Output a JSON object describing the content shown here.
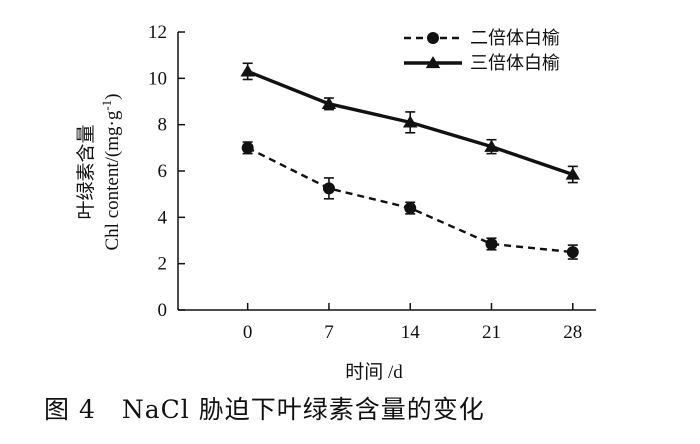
{
  "chart_data": {
    "type": "line",
    "x": [
      0,
      7,
      14,
      21,
      28
    ],
    "xlim": [
      -6,
      30
    ],
    "ylim": [
      0,
      12
    ],
    "xticks": [
      "0",
      "7",
      "14",
      "21",
      "28"
    ],
    "yticks": [
      "0",
      "2",
      "4",
      "6",
      "8",
      "10",
      "12"
    ],
    "xlabel": "时间 /d",
    "ylabel_cn": "叶绿素含量",
    "ylabel_en": "Chl content/(mg·g",
    "ylabel_en_sup": "-1",
    "ylabel_en_end": ")",
    "grid": false,
    "legend_position": "top-right",
    "series": [
      {
        "name": "二倍体白榆",
        "values": [
          7.0,
          5.25,
          4.4,
          2.85,
          2.5
        ],
        "errors": [
          0.25,
          0.45,
          0.25,
          0.25,
          0.3
        ],
        "marker": "circle",
        "line": "dashed",
        "color": "#111111"
      },
      {
        "name": "三倍体白榆",
        "values": [
          10.3,
          8.9,
          8.1,
          7.05,
          5.85
        ],
        "errors": [
          0.35,
          0.25,
          0.45,
          0.3,
          0.35
        ],
        "marker": "triangle",
        "line": "solid",
        "color": "#111111"
      }
    ]
  },
  "caption": "图 4　NaCl 胁迫下叶绿素含量的变化"
}
